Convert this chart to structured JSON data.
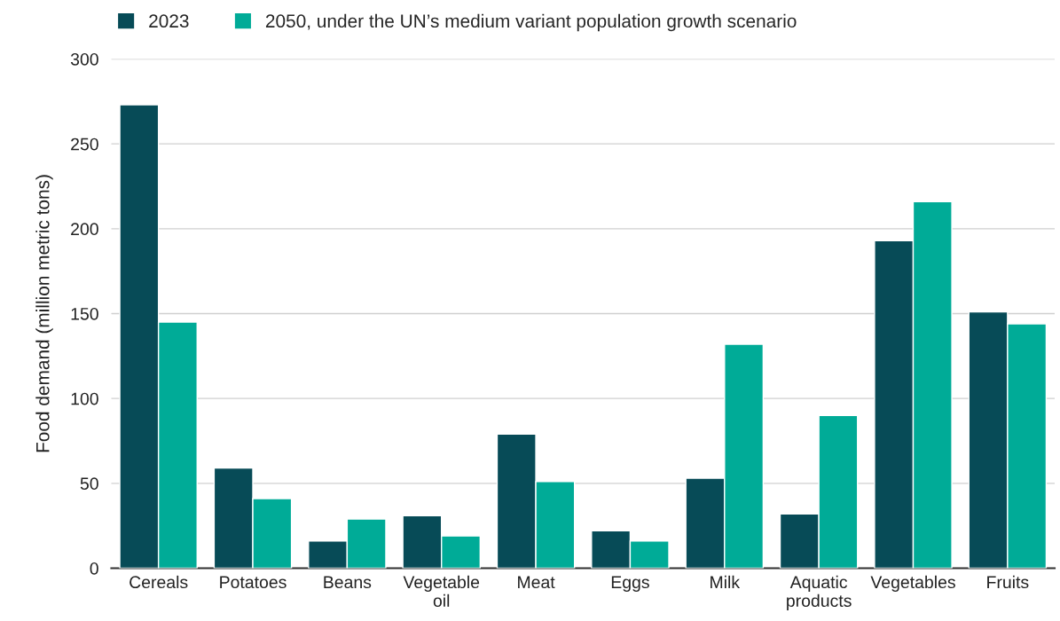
{
  "chart_data": {
    "type": "bar",
    "ylabel": "Food demand (million metric tons)",
    "categories": [
      "Cereals",
      "Potatoes",
      "Beans",
      "Vegetable oil",
      "Meat",
      "Eggs",
      "Milk",
      "Aquatic products",
      "Vegetables",
      "Fruits"
    ],
    "series": [
      {
        "name": "2023",
        "color": "#074b57",
        "values": [
          273,
          59,
          16,
          31,
          79,
          22,
          53,
          32,
          193,
          151
        ]
      },
      {
        "name": "2050, under the UN’s medium variant population growth scenario",
        "color": "#00ab97",
        "values": [
          145,
          41,
          29,
          19,
          51,
          16,
          132,
          90,
          216,
          144
        ]
      }
    ],
    "ylim": [
      0,
      300
    ],
    "yticks": [
      0,
      50,
      100,
      150,
      200,
      250,
      300
    ],
    "grid": "y",
    "legend": "top left"
  }
}
